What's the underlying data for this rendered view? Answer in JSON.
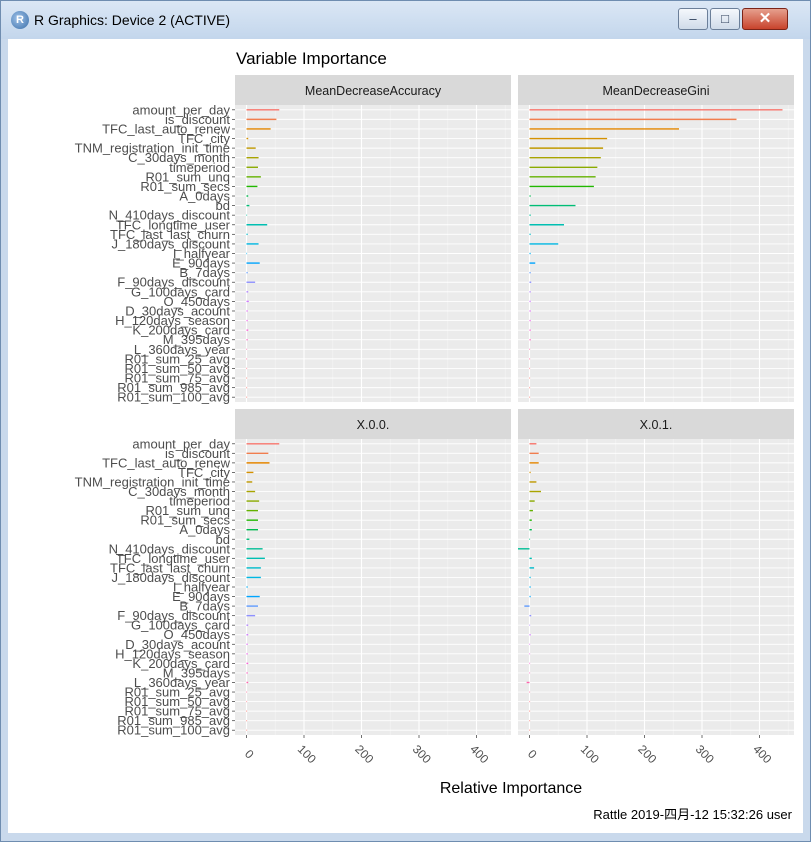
{
  "window": {
    "title": "R Graphics: Device 2 (ACTIVE)",
    "icon": "r-logo-icon",
    "buttons": {
      "minimize": "minimize-icon",
      "maximize": "maximize-icon",
      "close": "close-icon"
    }
  },
  "chart_data": {
    "type": "bar",
    "orientation": "horizontal",
    "title": "Variable Importance",
    "xlabel": "Relative Importance",
    "ylabel": "",
    "caption": "Rattle 2019-四月-12 15:32:26 user",
    "xlim": [
      -20,
      460
    ],
    "x_ticks": [
      "0",
      "100",
      "200",
      "300",
      "400"
    ],
    "grid": true,
    "legend": "none",
    "categories": [
      "amount_per_day",
      "is_discount",
      "TFC_last_auto_renew",
      "TFC_city",
      "TNM_registration_init_time",
      "C_30days_month",
      "timeperiod",
      "R01_sum_unq",
      "R01_sum_secs",
      "A_0days",
      "bd",
      "N_410days_discount",
      "TFC_longtime_user",
      "TFC_last_last_churn",
      "J_180days_discount",
      "I_halfyear",
      "E_90days",
      "B_7days",
      "F_90days_discount",
      "G_100days_card",
      "O_450days",
      "D_30days_acount",
      "H_120days_season",
      "K_200days_card",
      "M_395days",
      "L_360days_year",
      "R01_sum_25_avg",
      "R01_sum_50_avg",
      "R01_sum_75_avg",
      "R01_sum_985_avg",
      "R01_sum_100_avg"
    ],
    "colors": [
      "#F8766D",
      "#F17D4E",
      "#E58700",
      "#D59100",
      "#C19A00",
      "#A9A400",
      "#8BAB00",
      "#64B200",
      "#21B800",
      "#00BB4E",
      "#00BD76",
      "#00BE96",
      "#00BFB2",
      "#00BCCB",
      "#00B8E3",
      "#00B0F6",
      "#00A5FF",
      "#619CFF",
      "#8F91FF",
      "#B385FF",
      "#CF78FF",
      "#E26EF7",
      "#F066EA",
      "#FB61D7",
      "#FF61C3",
      "#FF65AE",
      "#FF6A98",
      "#FC7080",
      "#F8766D",
      "#F8766D",
      "#F8766D"
    ],
    "panels": [
      {
        "name": "MeanDecreaseAccuracy",
        "values": [
          57,
          52,
          42,
          3,
          16,
          21,
          20,
          25,
          19,
          3,
          5,
          1,
          36,
          2,
          21,
          1,
          23,
          2,
          15,
          3,
          4,
          2,
          2,
          3,
          2,
          1,
          1,
          1,
          1,
          1,
          1
        ]
      },
      {
        "name": "MeanDecreaseGini",
        "values": [
          440,
          360,
          260,
          135,
          128,
          124,
          118,
          115,
          112,
          2,
          80,
          2,
          60,
          2,
          50,
          2,
          10,
          2,
          3,
          2,
          2,
          2,
          2,
          2,
          2,
          1,
          1,
          1,
          1,
          1,
          1
        ]
      },
      {
        "name": "X.0.0.",
        "values": [
          57,
          38,
          40,
          12,
          10,
          15,
          22,
          20,
          20,
          20,
          5,
          28,
          32,
          25,
          25,
          2,
          23,
          20,
          15,
          3,
          3,
          2,
          2,
          3,
          2,
          3,
          1,
          1,
          1,
          1,
          1
        ]
      },
      {
        "name": "X.0.1.",
        "values": [
          12,
          16,
          16,
          2,
          12,
          20,
          9,
          6,
          4,
          4,
          1,
          -20,
          4,
          8,
          2,
          2,
          2,
          -9,
          3,
          1,
          2,
          1,
          1,
          1,
          1,
          -5,
          1,
          1,
          1,
          1,
          1
        ]
      }
    ]
  }
}
